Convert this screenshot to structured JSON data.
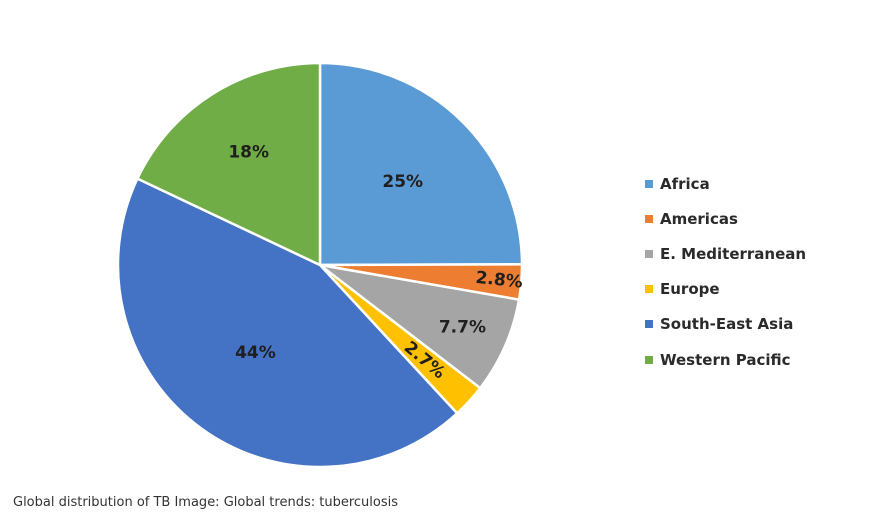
{
  "chart_data": {
    "type": "pie",
    "categories": [
      "Africa",
      "Americas",
      "E. Mediterranean",
      "Europe",
      "South-East Asia",
      "Western Pacific"
    ],
    "values": [
      25,
      2.8,
      7.7,
      2.7,
      44,
      18
    ],
    "data_labels": [
      "25%",
      "2.8%",
      "7.7%",
      "2.7%",
      "44%",
      "18%"
    ],
    "colors": [
      "#5b9bd5",
      "#ed7d31",
      "#a5a5a5",
      "#ffc000",
      "#4472c4",
      "#70ad47"
    ],
    "legend_position": "right",
    "start_angle": "12 o'clock",
    "direction": "clockwise"
  },
  "caption": "Global distribution of TB Image: Global trends: tuberculosis"
}
